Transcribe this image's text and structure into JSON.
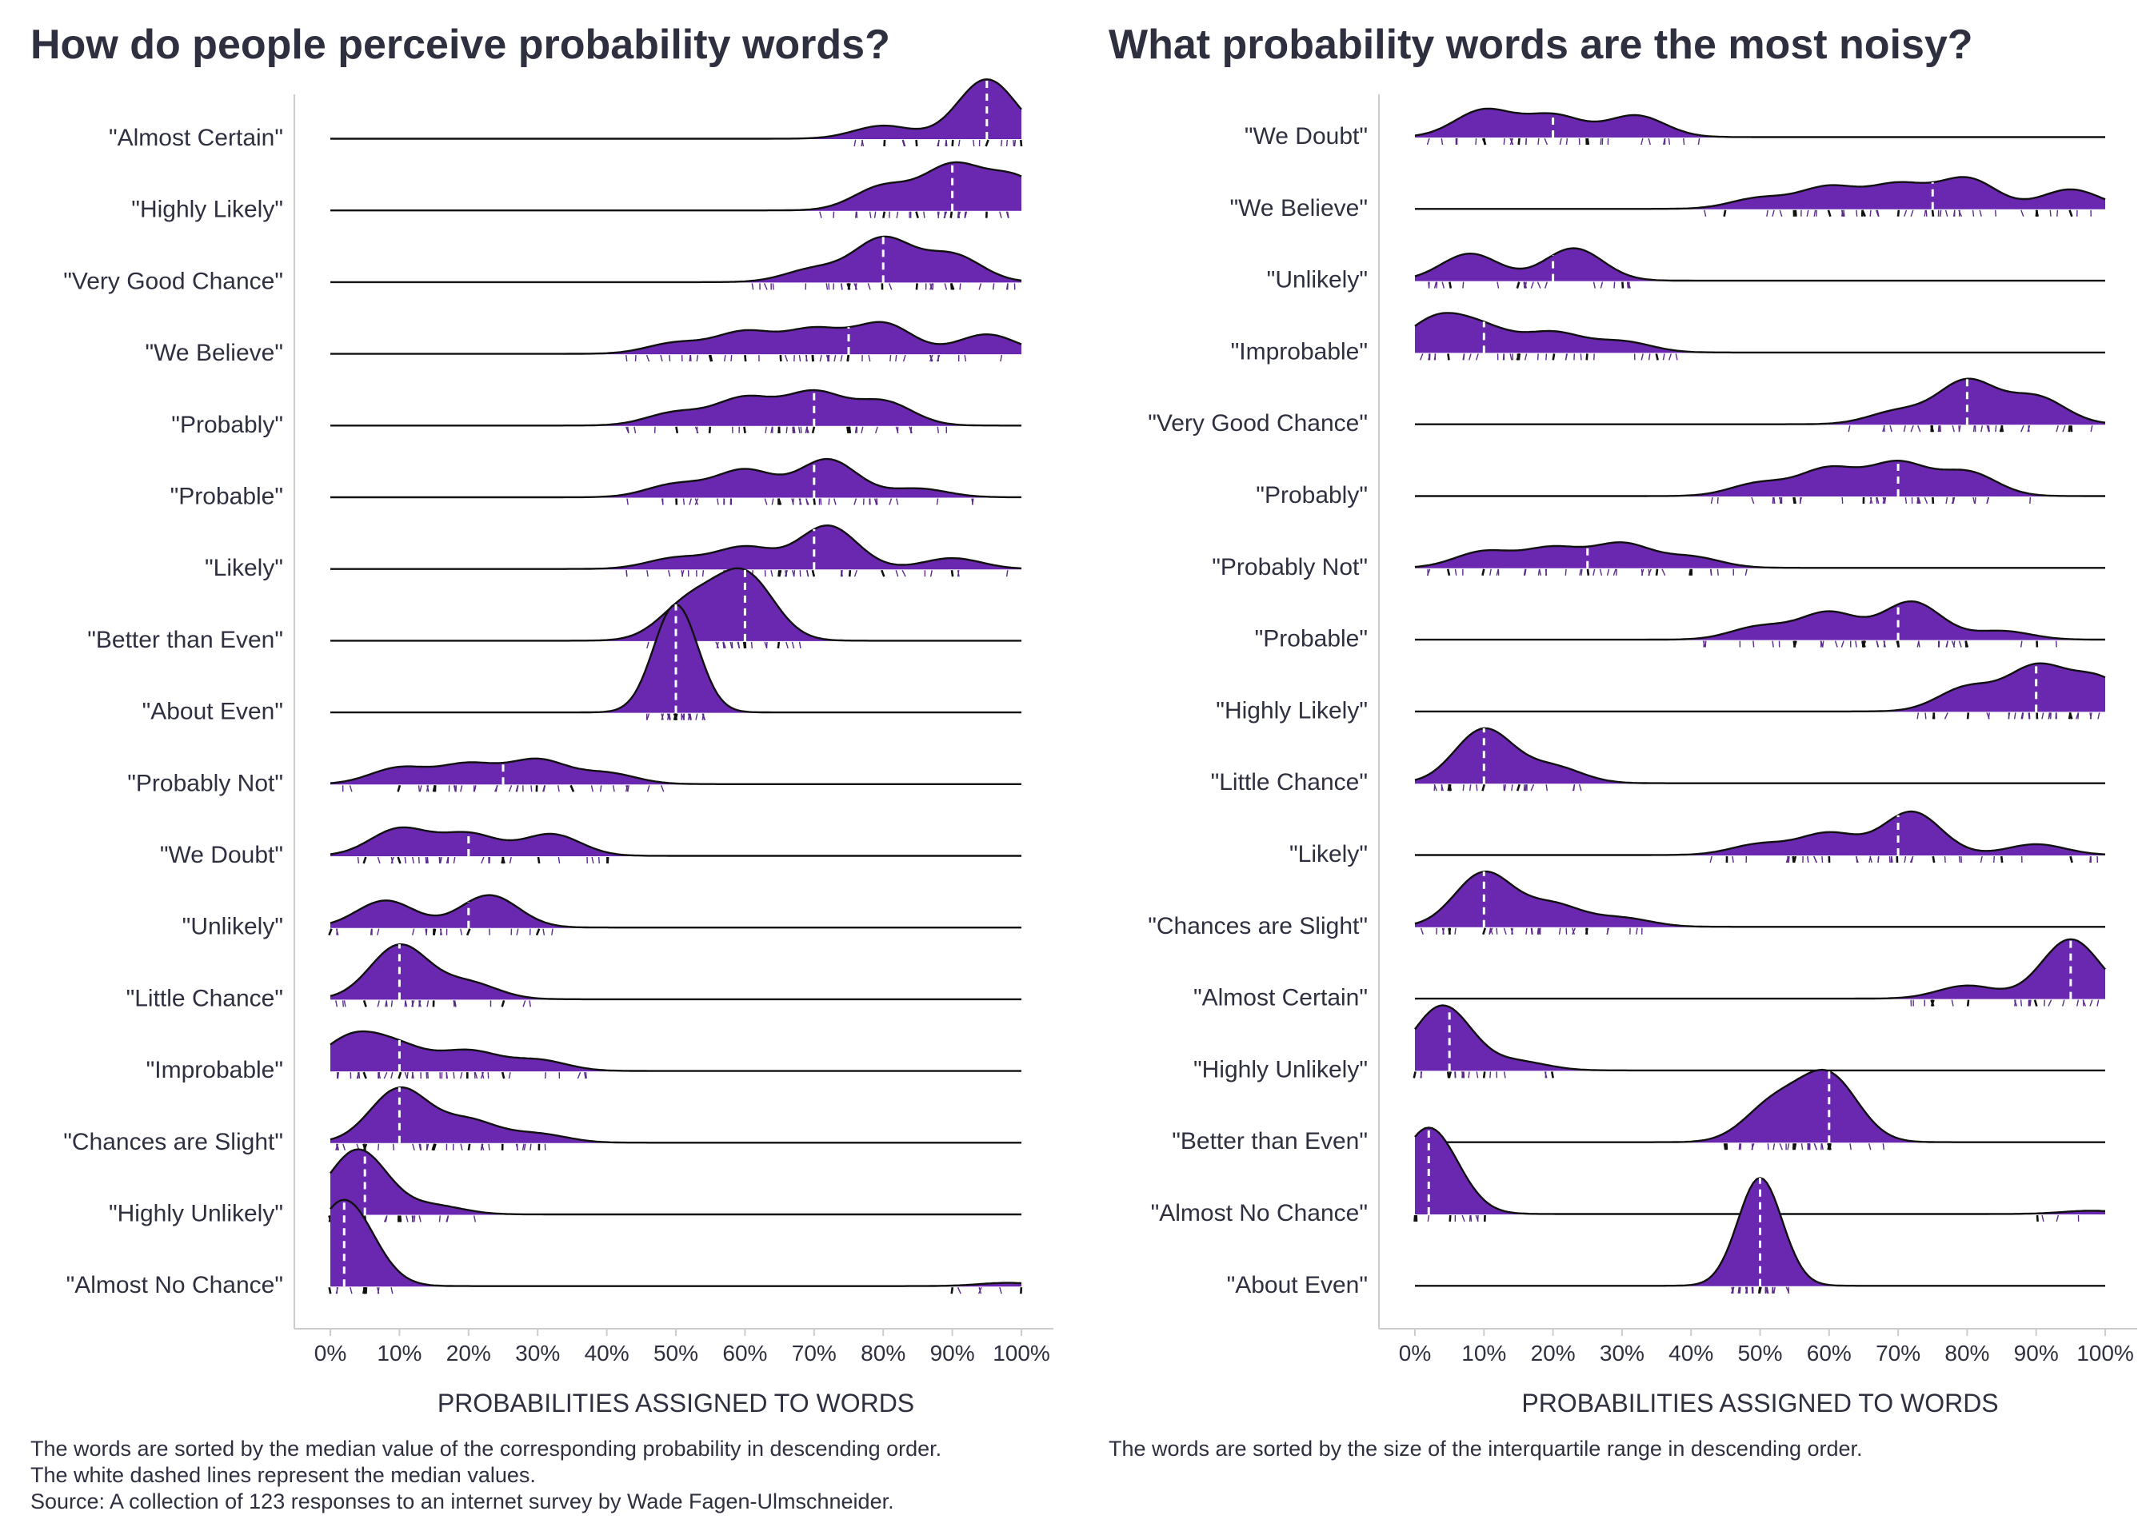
{
  "colors": {
    "fill": "#6a28b0",
    "rug": "#5a2a8a",
    "line": "#111111",
    "median": "#ffffff",
    "axis": "#cccccc",
    "text": "#2e3040"
  },
  "left": {
    "title": "How do people perceive probability words?",
    "xlabel": "PROBABILITIES ASSIGNED TO WORDS",
    "ticks": [
      "0%",
      "10%",
      "20%",
      "30%",
      "40%",
      "50%",
      "60%",
      "70%",
      "80%",
      "90%",
      "100%"
    ],
    "notes": [
      "The words are sorted by the median value of the corresponding probability in descending order.",
      "The white dashed lines represent the median values.",
      "Source: A collection of 123 responses to an internet survey by Wade Fagen-Ulmschneider."
    ]
  },
  "right": {
    "title": "What probability words are the most noisy?",
    "xlabel": "PROBABILITIES ASSIGNED TO WORDS",
    "ticks": [
      "0%",
      "10%",
      "20%",
      "30%",
      "40%",
      "50%",
      "60%",
      "70%",
      "80%",
      "90%",
      "100%"
    ],
    "notes": [
      "The words are sorted by the size of the interquartile range in descending order."
    ]
  },
  "chart_data": [
    {
      "type": "ridgeline",
      "title": "How do people perceive probability words?",
      "xlabel": "PROBABILITIES ASSIGNED TO WORDS",
      "xlim": [
        0,
        100
      ],
      "x_unit": "%",
      "series": [
        {
          "name": "\"Almost Certain\"",
          "median": 95,
          "modes": [
            [
              80,
              0.12
            ],
            [
              95,
              0.55
            ]
          ]
        },
        {
          "name": "\"Highly Likely\"",
          "median": 90,
          "modes": [
            [
              80,
              0.22
            ],
            [
              90,
              0.4
            ],
            [
              99,
              0.3
            ]
          ]
        },
        {
          "name": "\"Very Good Chance\"",
          "median": 80,
          "modes": [
            [
              70,
              0.12
            ],
            [
              80,
              0.4
            ],
            [
              90,
              0.25
            ]
          ]
        },
        {
          "name": "\"We Believe\"",
          "median": 75,
          "modes": [
            [
              50,
              0.1
            ],
            [
              60,
              0.2
            ],
            [
              70,
              0.22
            ],
            [
              80,
              0.28
            ],
            [
              95,
              0.18
            ]
          ]
        },
        {
          "name": "\"Probably\"",
          "median": 70,
          "modes": [
            [
              50,
              0.12
            ],
            [
              60,
              0.25
            ],
            [
              70,
              0.3
            ],
            [
              80,
              0.22
            ]
          ]
        },
        {
          "name": "\"Probable\"",
          "median": 70,
          "modes": [
            [
              50,
              0.12
            ],
            [
              60,
              0.25
            ],
            [
              72,
              0.35
            ],
            [
              85,
              0.08
            ]
          ]
        },
        {
          "name": "\"Likely\"",
          "median": 70,
          "modes": [
            [
              50,
              0.1
            ],
            [
              60,
              0.2
            ],
            [
              72,
              0.4
            ],
            [
              90,
              0.1
            ]
          ]
        },
        {
          "name": "\"Better than Even\"",
          "median": 60,
          "modes": [
            [
              52,
              0.35
            ],
            [
              60,
              0.6
            ]
          ]
        },
        {
          "name": "\"About Even\"",
          "median": 50,
          "modes": [
            [
              50,
              1.0
            ]
          ]
        },
        {
          "name": "\"Probably Not\"",
          "median": 25,
          "modes": [
            [
              10,
              0.15
            ],
            [
              20,
              0.18
            ],
            [
              30,
              0.22
            ],
            [
              40,
              0.1
            ]
          ]
        },
        {
          "name": "\"We Doubt\"",
          "median": 20,
          "modes": [
            [
              10,
              0.25
            ],
            [
              20,
              0.2
            ],
            [
              32,
              0.2
            ]
          ]
        },
        {
          "name": "\"Unlikely\"",
          "median": 20,
          "modes": [
            [
              8,
              0.25
            ],
            [
              23,
              0.3
            ]
          ]
        },
        {
          "name": "\"Little Chance\"",
          "median": 10,
          "modes": [
            [
              10,
              0.5
            ],
            [
              20,
              0.15
            ]
          ]
        },
        {
          "name": "\"Improbable\"",
          "median": 10,
          "modes": [
            [
              3,
              0.3
            ],
            [
              10,
              0.2
            ],
            [
              20,
              0.18
            ],
            [
              30,
              0.1
            ]
          ]
        },
        {
          "name": "\"Chances are Slight\"",
          "median": 10,
          "modes": [
            [
              10,
              0.5
            ],
            [
              20,
              0.2
            ],
            [
              30,
              0.08
            ]
          ]
        },
        {
          "name": "\"Highly Unlikely\"",
          "median": 5,
          "modes": [
            [
              4,
              0.6
            ],
            [
              15,
              0.08
            ]
          ]
        },
        {
          "name": "\"Almost No Chance\"",
          "median": 2,
          "modes": [
            [
              2,
              0.8
            ],
            [
              98,
              0.03
            ]
          ]
        }
      ]
    },
    {
      "type": "ridgeline",
      "title": "What probability words are the most noisy?",
      "xlabel": "PROBABILITIES ASSIGNED TO WORDS",
      "xlim": [
        0,
        100
      ],
      "x_unit": "%",
      "series": [
        {
          "name": "\"We Doubt\"",
          "median": 20,
          "modes": [
            [
              10,
              0.25
            ],
            [
              20,
              0.2
            ],
            [
              32,
              0.2
            ]
          ]
        },
        {
          "name": "\"We Believe\"",
          "median": 75,
          "modes": [
            [
              50,
              0.1
            ],
            [
              60,
              0.2
            ],
            [
              70,
              0.22
            ],
            [
              80,
              0.28
            ],
            [
              95,
              0.18
            ]
          ]
        },
        {
          "name": "\"Unlikely\"",
          "median": 20,
          "modes": [
            [
              8,
              0.25
            ],
            [
              23,
              0.3
            ]
          ]
        },
        {
          "name": "\"Improbable\"",
          "median": 10,
          "modes": [
            [
              3,
              0.3
            ],
            [
              10,
              0.2
            ],
            [
              20,
              0.18
            ],
            [
              30,
              0.1
            ]
          ]
        },
        {
          "name": "\"Very Good Chance\"",
          "median": 80,
          "modes": [
            [
              70,
              0.12
            ],
            [
              80,
              0.4
            ],
            [
              90,
              0.25
            ]
          ]
        },
        {
          "name": "\"Probably\"",
          "median": 70,
          "modes": [
            [
              50,
              0.12
            ],
            [
              60,
              0.25
            ],
            [
              70,
              0.3
            ],
            [
              80,
              0.22
            ]
          ]
        },
        {
          "name": "\"Probably Not\"",
          "median": 25,
          "modes": [
            [
              10,
              0.15
            ],
            [
              20,
              0.18
            ],
            [
              30,
              0.22
            ],
            [
              40,
              0.1
            ]
          ]
        },
        {
          "name": "\"Probable\"",
          "median": 70,
          "modes": [
            [
              50,
              0.12
            ],
            [
              60,
              0.25
            ],
            [
              72,
              0.35
            ],
            [
              85,
              0.08
            ]
          ]
        },
        {
          "name": "\"Highly Likely\"",
          "median": 90,
          "modes": [
            [
              80,
              0.22
            ],
            [
              90,
              0.4
            ],
            [
              99,
              0.3
            ]
          ]
        },
        {
          "name": "\"Little Chance\"",
          "median": 10,
          "modes": [
            [
              10,
              0.5
            ],
            [
              20,
              0.15
            ]
          ]
        },
        {
          "name": "\"Likely\"",
          "median": 70,
          "modes": [
            [
              50,
              0.1
            ],
            [
              60,
              0.2
            ],
            [
              72,
              0.4
            ],
            [
              90,
              0.1
            ]
          ]
        },
        {
          "name": "\"Chances are Slight\"",
          "median": 10,
          "modes": [
            [
              10,
              0.5
            ],
            [
              20,
              0.2
            ],
            [
              30,
              0.08
            ]
          ]
        },
        {
          "name": "\"Almost Certain\"",
          "median": 95,
          "modes": [
            [
              80,
              0.12
            ],
            [
              95,
              0.55
            ]
          ]
        },
        {
          "name": "\"Highly Unlikely\"",
          "median": 5,
          "modes": [
            [
              4,
              0.6
            ],
            [
              15,
              0.08
            ]
          ]
        },
        {
          "name": "\"Better than Even\"",
          "median": 60,
          "modes": [
            [
              52,
              0.35
            ],
            [
              60,
              0.6
            ]
          ]
        },
        {
          "name": "\"Almost No Chance\"",
          "median": 2,
          "modes": [
            [
              2,
              0.8
            ],
            [
              98,
              0.03
            ]
          ]
        },
        {
          "name": "\"About Even\"",
          "median": 50,
          "modes": [
            [
              50,
              1.0
            ]
          ]
        }
      ]
    }
  ]
}
